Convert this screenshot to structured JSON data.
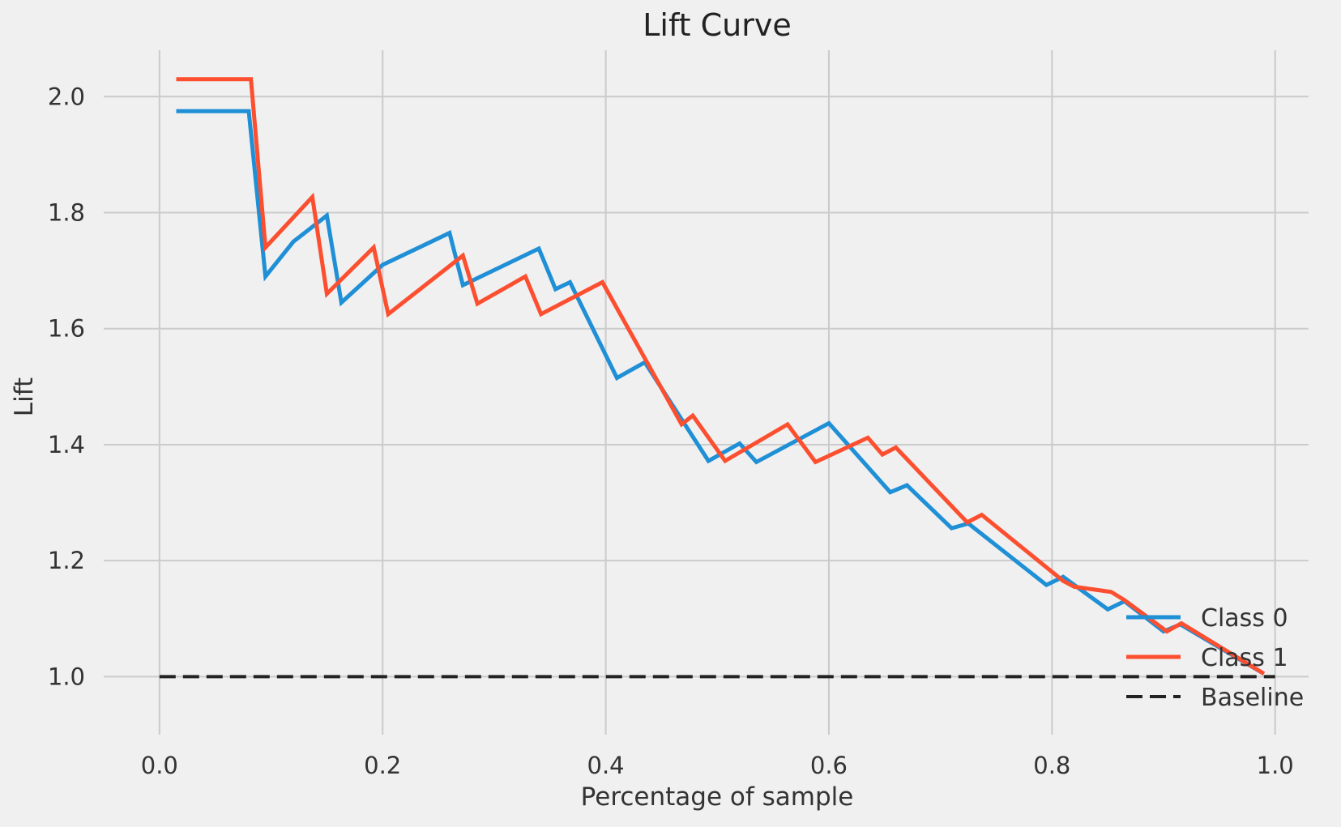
{
  "chart_data": {
    "type": "line",
    "title": "Lift Curve",
    "xlabel": "Percentage of sample",
    "ylabel": "Lift",
    "xlim": [
      -0.05,
      1.03
    ],
    "ylim": [
      0.9,
      2.08
    ],
    "xticks": [
      0.0,
      0.2,
      0.4,
      0.6,
      0.8,
      1.0
    ],
    "xtick_labels": [
      "0.0",
      "0.2",
      "0.4",
      "0.6",
      "0.8",
      "1.0"
    ],
    "yticks": [
      1.0,
      1.2,
      1.4,
      1.6,
      1.8,
      2.0
    ],
    "ytick_labels": [
      "1.0",
      "1.2",
      "1.4",
      "1.6",
      "1.8",
      "2.0"
    ],
    "grid": true,
    "legend_position": "lower-right",
    "series": [
      {
        "name": "Class 0",
        "color": "#1f8fd6",
        "dash": "solid",
        "x": [
          0.015,
          0.08,
          0.095,
          0.12,
          0.15,
          0.163,
          0.2,
          0.26,
          0.272,
          0.34,
          0.355,
          0.368,
          0.41,
          0.435,
          0.492,
          0.52,
          0.535,
          0.6,
          0.655,
          0.67,
          0.71,
          0.725,
          0.795,
          0.81,
          0.85,
          0.865,
          0.9,
          0.915,
          0.99
        ],
        "y": [
          1.975,
          1.975,
          1.69,
          1.75,
          1.795,
          1.645,
          1.71,
          1.765,
          1.675,
          1.738,
          1.668,
          1.68,
          1.515,
          1.542,
          1.372,
          1.402,
          1.37,
          1.437,
          1.318,
          1.33,
          1.256,
          1.264,
          1.158,
          1.172,
          1.116,
          1.13,
          1.078,
          1.09,
          1.005
        ]
      },
      {
        "name": "Class 1",
        "color": "#fc4f30",
        "dash": "solid",
        "x": [
          0.015,
          0.082,
          0.095,
          0.137,
          0.15,
          0.192,
          0.205,
          0.272,
          0.285,
          0.328,
          0.342,
          0.397,
          0.468,
          0.478,
          0.507,
          0.563,
          0.588,
          0.635,
          0.648,
          0.66,
          0.724,
          0.737,
          0.81,
          0.82,
          0.853,
          0.865,
          0.903,
          0.916,
          0.99
        ],
        "y": [
          2.03,
          2.03,
          1.74,
          1.827,
          1.66,
          1.74,
          1.625,
          1.726,
          1.643,
          1.69,
          1.625,
          1.68,
          1.435,
          1.45,
          1.372,
          1.435,
          1.37,
          1.412,
          1.383,
          1.395,
          1.266,
          1.279,
          1.165,
          1.155,
          1.146,
          1.132,
          1.078,
          1.092,
          1.005
        ]
      },
      {
        "name": "Baseline",
        "color": "#222222",
        "dash": "dashed",
        "x": [
          0.0,
          1.0
        ],
        "y": [
          1.0,
          1.0
        ]
      }
    ]
  }
}
